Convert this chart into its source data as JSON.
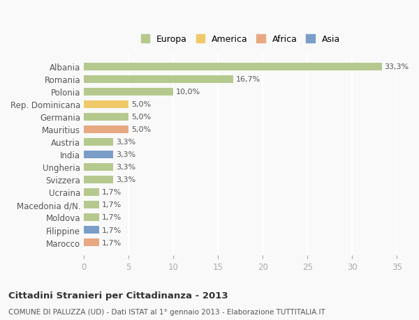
{
  "countries": [
    "Albania",
    "Romania",
    "Polonia",
    "Rep. Dominicana",
    "Germania",
    "Mauritius",
    "Austria",
    "India",
    "Ungheria",
    "Svizzera",
    "Ucraina",
    "Macedonia d/N.",
    "Moldova",
    "Filippine",
    "Marocco"
  ],
  "values": [
    33.3,
    16.7,
    10.0,
    5.0,
    5.0,
    5.0,
    3.3,
    3.3,
    3.3,
    3.3,
    1.7,
    1.7,
    1.7,
    1.7,
    1.7
  ],
  "labels": [
    "33,3%",
    "16,7%",
    "10,0%",
    "5,0%",
    "5,0%",
    "5,0%",
    "3,3%",
    "3,3%",
    "3,3%",
    "3,3%",
    "1,7%",
    "1,7%",
    "1,7%",
    "1,7%",
    "1,7%"
  ],
  "colors": [
    "#b5c98e",
    "#b5c98e",
    "#b5c98e",
    "#f0c96a",
    "#b5c98e",
    "#e8a882",
    "#b5c98e",
    "#7b9ec9",
    "#b5c98e",
    "#b5c98e",
    "#b5c98e",
    "#b5c98e",
    "#b5c98e",
    "#7b9ec9",
    "#e8a882"
  ],
  "legend_labels": [
    "Europa",
    "America",
    "Africa",
    "Asia"
  ],
  "legend_colors": [
    "#b5c98e",
    "#f0c96a",
    "#e8a882",
    "#7b9ec9"
  ],
  "title": "Cittadini Stranieri per Cittadinanza - 2013",
  "subtitle": "COMUNE DI PALUZZA (UD) - Dati ISTAT al 1° gennaio 2013 - Elaborazione TUTTITALIA.IT",
  "xlim": [
    0,
    35
  ],
  "xticks": [
    0,
    5,
    10,
    15,
    20,
    25,
    30,
    35
  ],
  "background_color": "#f9f9f9",
  "grid_color": "#ffffff"
}
